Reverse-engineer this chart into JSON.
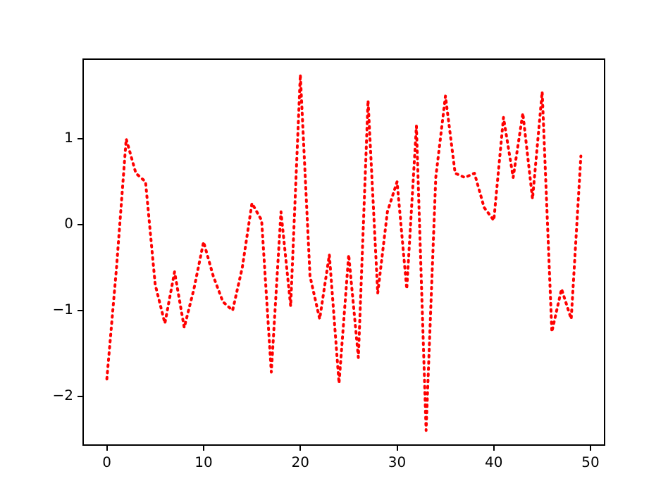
{
  "chart_data": {
    "type": "line",
    "x": [
      0,
      1,
      2,
      3,
      4,
      5,
      6,
      7,
      8,
      9,
      10,
      11,
      12,
      13,
      14,
      15,
      16,
      17,
      18,
      19,
      20,
      21,
      22,
      23,
      24,
      25,
      26,
      27,
      28,
      29,
      30,
      31,
      32,
      33,
      34,
      35,
      36,
      37,
      38,
      39,
      40,
      41,
      42,
      43,
      44,
      45,
      46,
      47,
      48,
      49
    ],
    "series": [
      {
        "color": "#ff0000",
        "values": [
          -1.8,
          -0.5,
          1.0,
          0.6,
          0.5,
          -0.7,
          -1.15,
          -0.55,
          -1.2,
          -0.75,
          -0.2,
          -0.6,
          -0.9,
          -1.0,
          -0.5,
          0.25,
          0.05,
          -1.72,
          0.15,
          -0.95,
          1.75,
          -0.6,
          -1.1,
          -0.35,
          -1.85,
          -0.35,
          -1.55,
          1.45,
          -0.8,
          0.15,
          0.5,
          -0.75,
          1.15,
          -2.4,
          0.55,
          1.5,
          0.6,
          0.55,
          0.6,
          0.2,
          0.05,
          1.25,
          0.55,
          1.3,
          0.3,
          1.55,
          -1.25,
          -0.75,
          -1.1,
          0.8
        ]
      }
    ],
    "xlim": [
      -2.45,
      51.45
    ],
    "ylim": [
      -2.57,
      1.93
    ],
    "xticks": [
      0,
      10,
      20,
      30,
      40,
      50
    ],
    "yticks": [
      -2,
      -1,
      0,
      1
    ],
    "line_style": "dotted",
    "marker": "none",
    "grid": false,
    "legend": false
  }
}
